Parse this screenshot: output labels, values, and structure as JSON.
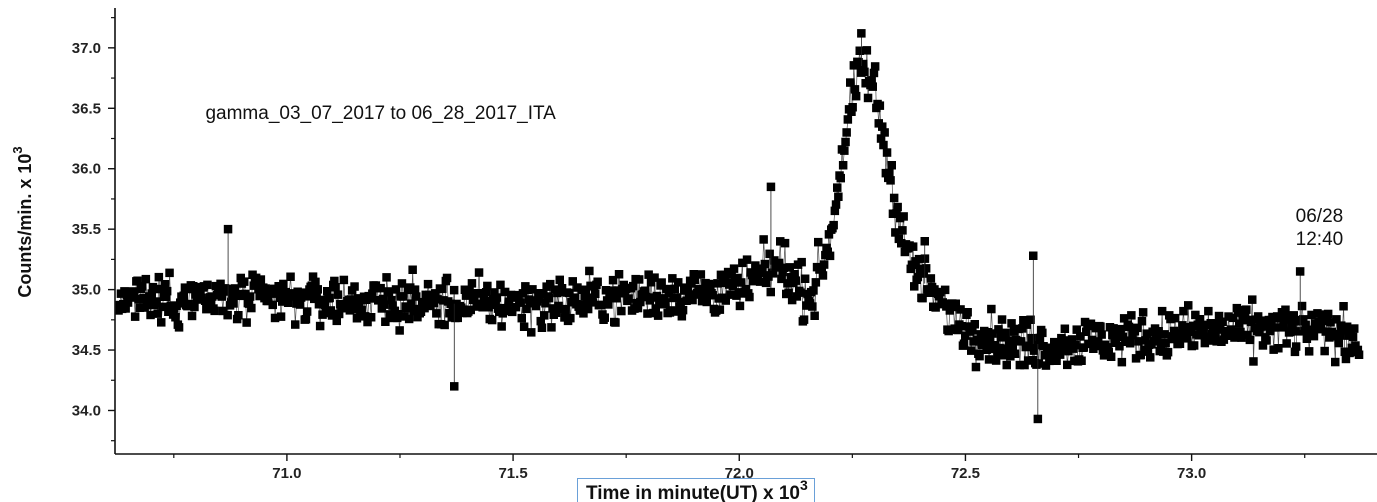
{
  "chart_data": {
    "type": "scatter",
    "title": "",
    "xlabel": "Time in minute(UT) x 10^3",
    "xlabel_text": "Time in minute(UT) x 10",
    "xlabel_exp": "3",
    "ylabel": "Counts/min. x 10^3",
    "ylabel_text": "Counts/min. x 10",
    "ylabel_exp": "3",
    "xlim": [
      70.62,
      73.37
    ],
    "ylim": [
      33.64,
      37.28
    ],
    "x_ticks": [
      {
        "value": 71.0,
        "label": "71.0"
      },
      {
        "value": 71.5,
        "label": "71.5"
      },
      {
        "value": 72.0,
        "label": "72.0"
      },
      {
        "value": 72.5,
        "label": "72.5"
      },
      {
        "value": 73.0,
        "label": "73.0"
      }
    ],
    "y_ticks": [
      {
        "value": 34.0,
        "label": "34.0"
      },
      {
        "value": 34.5,
        "label": "34.5"
      },
      {
        "value": 35.0,
        "label": "35.0"
      },
      {
        "value": 35.5,
        "label": "35.5"
      },
      {
        "value": 36.0,
        "label": "36.0"
      },
      {
        "value": 36.5,
        "label": "36.5"
      },
      {
        "value": 37.0,
        "label": "37.0"
      }
    ],
    "grid": false,
    "legend": "none",
    "marker_color": "#000000",
    "series": [
      {
        "baseline": [
          [
            70.62,
            34.9
          ],
          [
            70.8,
            34.92
          ],
          [
            71.0,
            34.92
          ],
          [
            71.2,
            34.9
          ],
          [
            71.4,
            34.88
          ],
          [
            71.6,
            34.9
          ],
          [
            71.8,
            34.96
          ],
          [
            72.0,
            35.0
          ],
          [
            72.08,
            35.18
          ],
          [
            72.1,
            35.2
          ],
          [
            72.12,
            35.05
          ],
          [
            72.16,
            34.95
          ],
          [
            72.2,
            35.4
          ],
          [
            72.24,
            36.4
          ],
          [
            72.27,
            36.85
          ],
          [
            72.3,
            36.65
          ],
          [
            72.34,
            35.8
          ],
          [
            72.38,
            35.2
          ],
          [
            72.44,
            34.9
          ],
          [
            72.5,
            34.7
          ],
          [
            72.6,
            34.55
          ],
          [
            72.7,
            34.55
          ],
          [
            72.85,
            34.6
          ],
          [
            73.0,
            34.65
          ],
          [
            73.2,
            34.68
          ],
          [
            73.37,
            34.62
          ]
        ],
        "noise": 0.2,
        "n_points": 1050,
        "outliers": [
          [
            72.07,
            35.85
          ],
          [
            71.37,
            34.2
          ],
          [
            72.66,
            33.93
          ],
          [
            72.65,
            35.28
          ],
          [
            72.41,
            35.4
          ],
          [
            72.27,
            37.12
          ],
          [
            70.87,
            35.5
          ],
          [
            73.24,
            35.15
          ]
        ]
      }
    ],
    "annotations": [
      {
        "text": "gamma_03_07_2017 to 06_28_2017_ITA",
        "x": 70.82,
        "y": 36.41
      },
      {
        "text": "06/28",
        "x": 73.23,
        "y": 35.56
      },
      {
        "text": "12:40",
        "x": 73.23,
        "y": 35.37
      }
    ]
  }
}
